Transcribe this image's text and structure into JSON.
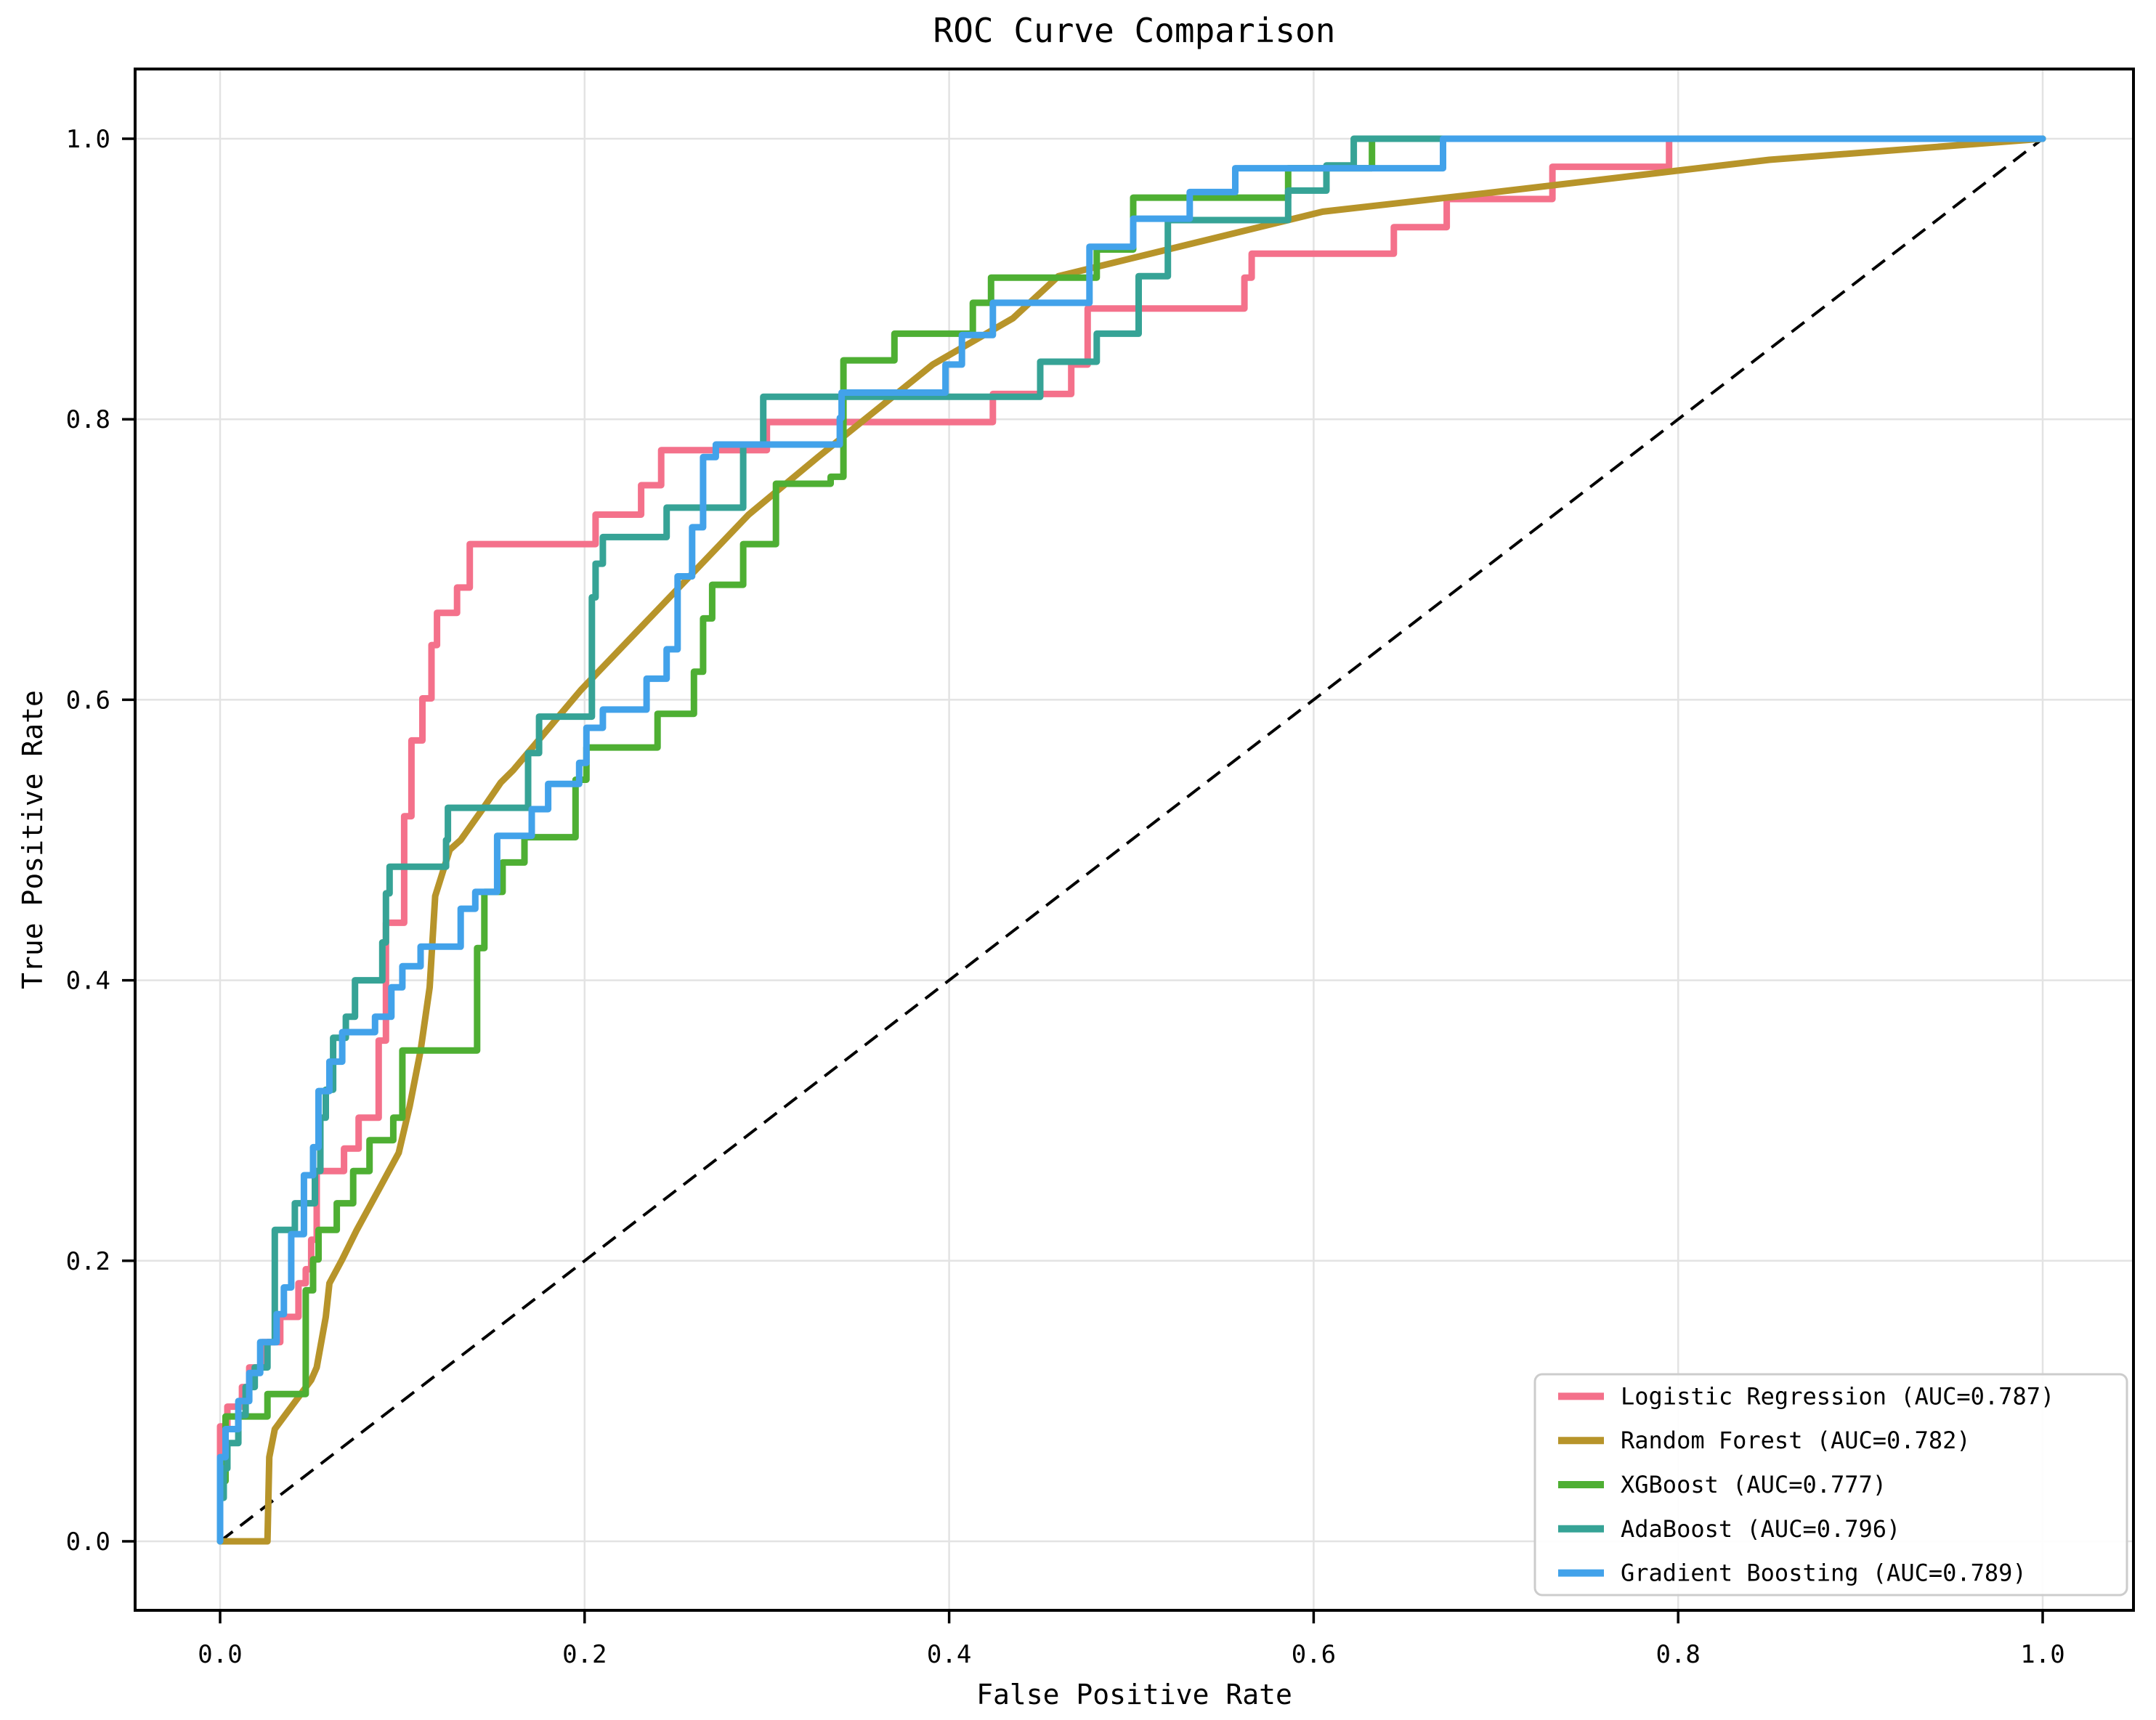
{
  "title": "ROC Curve Comparison",
  "chart_data": {
    "type": "line",
    "title": "ROC Curve Comparison",
    "xlabel": "False Positive Rate",
    "ylabel": "True Positive Rate",
    "xlim": [
      0.0,
      1.0
    ],
    "ylim": [
      0.0,
      1.0
    ],
    "grid": true,
    "grid_color": "#e3e3e3",
    "background": "#ffffff",
    "legend_position": "lower right",
    "xticks": [
      "0.0",
      "0.2",
      "0.4",
      "0.6",
      "0.8",
      "1.0"
    ],
    "yticks": [
      "0.0",
      "0.2",
      "0.4",
      "0.6",
      "0.8",
      "1.0"
    ],
    "xtick_values": [
      0.0,
      0.2,
      0.4,
      0.6,
      0.8,
      1.0
    ],
    "ytick_values": [
      0.0,
      0.2,
      0.4,
      0.6,
      0.8,
      1.0
    ],
    "reference_line": {
      "name": "chance-diagonal",
      "style": "dashed",
      "color": "#000000",
      "points": [
        [
          0,
          0
        ],
        [
          1,
          1
        ]
      ]
    },
    "series": [
      {
        "name": "Logistic Regression",
        "auc": 0.787,
        "legend_label": "Logistic Regression (AUC=0.787)",
        "color": "#f4718b",
        "mode": "step",
        "points": [
          [
            0,
            0
          ],
          [
            0.004,
            0.082
          ],
          [
            0.012,
            0.096
          ],
          [
            0.016,
            0.11
          ],
          [
            0.023,
            0.124
          ],
          [
            0.033,
            0.142
          ],
          [
            0.043,
            0.16
          ],
          [
            0.047,
            0.184
          ],
          [
            0.05,
            0.194
          ],
          [
            0.053,
            0.215
          ],
          [
            0.068,
            0.264
          ],
          [
            0.076,
            0.28
          ],
          [
            0.087,
            0.302
          ],
          [
            0.091,
            0.357
          ],
          [
            0.101,
            0.441
          ],
          [
            0.105,
            0.517
          ],
          [
            0.111,
            0.571
          ],
          [
            0.116,
            0.601
          ],
          [
            0.119,
            0.639
          ],
          [
            0.13,
            0.662
          ],
          [
            0.137,
            0.68
          ],
          [
            0.206,
            0.711
          ],
          [
            0.231,
            0.732
          ],
          [
            0.242,
            0.753
          ],
          [
            0.3,
            0.778
          ],
          [
            0.424,
            0.798
          ],
          [
            0.467,
            0.818
          ],
          [
            0.476,
            0.839
          ],
          [
            0.562,
            0.879
          ],
          [
            0.566,
            0.901
          ],
          [
            0.644,
            0.918
          ],
          [
            0.673,
            0.937
          ],
          [
            0.731,
            0.957
          ],
          [
            0.795,
            0.98
          ],
          [
            0.856,
            1
          ],
          [
            1,
            1
          ]
        ]
      },
      {
        "name": "Random Forest",
        "auc": 0.782,
        "legend_label": "Random Forest (AUC=0.782)",
        "color": "#b7942a",
        "mode": "line",
        "points": [
          [
            0,
            0
          ],
          [
            0.026,
            0
          ],
          [
            0.027,
            0.06
          ],
          [
            0.03,
            0.08
          ],
          [
            0.05,
            0.115
          ],
          [
            0.053,
            0.124
          ],
          [
            0.058,
            0.16
          ],
          [
            0.06,
            0.184
          ],
          [
            0.067,
            0.201
          ],
          [
            0.075,
            0.222
          ],
          [
            0.083,
            0.241
          ],
          [
            0.088,
            0.253
          ],
          [
            0.098,
            0.277
          ],
          [
            0.104,
            0.31
          ],
          [
            0.11,
            0.35
          ],
          [
            0.115,
            0.395
          ],
          [
            0.118,
            0.46
          ],
          [
            0.126,
            0.493
          ],
          [
            0.132,
            0.5
          ],
          [
            0.144,
            0.522
          ],
          [
            0.154,
            0.541
          ],
          [
            0.161,
            0.55
          ],
          [
            0.198,
            0.607
          ],
          [
            0.29,
            0.732
          ],
          [
            0.328,
            0.773
          ],
          [
            0.391,
            0.839
          ],
          [
            0.435,
            0.872
          ],
          [
            0.46,
            0.902
          ],
          [
            0.605,
            0.948
          ],
          [
            0.7,
            0.962
          ],
          [
            0.85,
            0.985
          ],
          [
            1,
            1
          ]
        ]
      },
      {
        "name": "XGBoost",
        "auc": 0.777,
        "legend_label": "XGBoost (AUC=0.777)",
        "color": "#4eaf33",
        "mode": "step",
        "points": [
          [
            0,
            0
          ],
          [
            0.003,
            0.043
          ],
          [
            0.026,
            0.089
          ],
          [
            0.047,
            0.105
          ],
          [
            0.047,
            0.16
          ],
          [
            0.051,
            0.179
          ],
          [
            0.054,
            0.201
          ],
          [
            0.064,
            0.222
          ],
          [
            0.073,
            0.241
          ],
          [
            0.082,
            0.264
          ],
          [
            0.095,
            0.286
          ],
          [
            0.1,
            0.302
          ],
          [
            0.141,
            0.35
          ],
          [
            0.145,
            0.423
          ],
          [
            0.155,
            0.463
          ],
          [
            0.167,
            0.484
          ],
          [
            0.195,
            0.502
          ],
          [
            0.201,
            0.543
          ],
          [
            0.24,
            0.566
          ],
          [
            0.26,
            0.59
          ],
          [
            0.265,
            0.62
          ],
          [
            0.27,
            0.658
          ],
          [
            0.287,
            0.682
          ],
          [
            0.305,
            0.711
          ],
          [
            0.335,
            0.754
          ],
          [
            0.342,
            0.759
          ],
          [
            0.342,
            0.82
          ],
          [
            0.37,
            0.842
          ],
          [
            0.413,
            0.861
          ],
          [
            0.423,
            0.883
          ],
          [
            0.481,
            0.901
          ],
          [
            0.501,
            0.921
          ],
          [
            0.586,
            0.958
          ],
          [
            0.632,
            0.979
          ],
          [
            0.878,
            1
          ],
          [
            1,
            1
          ]
        ]
      },
      {
        "name": "AdaBoost",
        "auc": 0.796,
        "legend_label": "AdaBoost (AUC=0.796)",
        "color": "#36a396",
        "mode": "step",
        "points": [
          [
            0,
            0
          ],
          [
            0.002,
            0.031
          ],
          [
            0.004,
            0.052
          ],
          [
            0.01,
            0.07
          ],
          [
            0.014,
            0.09
          ],
          [
            0.019,
            0.11
          ],
          [
            0.026,
            0.124
          ],
          [
            0.03,
            0.142
          ],
          [
            0.041,
            0.222
          ],
          [
            0.052,
            0.241
          ],
          [
            0.055,
            0.264
          ],
          [
            0.058,
            0.302
          ],
          [
            0.062,
            0.322
          ],
          [
            0.069,
            0.359
          ],
          [
            0.074,
            0.374
          ],
          [
            0.089,
            0.4
          ],
          [
            0.091,
            0.427
          ],
          [
            0.093,
            0.462
          ],
          [
            0.124,
            0.481
          ],
          [
            0.125,
            0.5
          ],
          [
            0.169,
            0.523
          ],
          [
            0.175,
            0.562
          ],
          [
            0.204,
            0.588
          ],
          [
            0.206,
            0.673
          ],
          [
            0.21,
            0.697
          ],
          [
            0.245,
            0.716
          ],
          [
            0.287,
            0.737
          ],
          [
            0.298,
            0.782
          ],
          [
            0.45,
            0.816
          ],
          [
            0.481,
            0.841
          ],
          [
            0.504,
            0.861
          ],
          [
            0.52,
            0.902
          ],
          [
            0.586,
            0.942
          ],
          [
            0.607,
            0.963
          ],
          [
            0.622,
            0.981
          ],
          [
            0.694,
            1
          ],
          [
            1,
            1
          ]
        ]
      },
      {
        "name": "Gradient Boosting",
        "auc": 0.789,
        "legend_label": "Gradient Boosting (AUC=0.789)",
        "color": "#42a2ea",
        "mode": "step",
        "points": [
          [
            0,
            0
          ],
          [
            0.003,
            0.06
          ],
          [
            0.01,
            0.08
          ],
          [
            0.016,
            0.1
          ],
          [
            0.022,
            0.12
          ],
          [
            0.031,
            0.142
          ],
          [
            0.035,
            0.162
          ],
          [
            0.039,
            0.181
          ],
          [
            0.046,
            0.219
          ],
          [
            0.051,
            0.261
          ],
          [
            0.054,
            0.281
          ],
          [
            0.06,
            0.321
          ],
          [
            0.067,
            0.342
          ],
          [
            0.085,
            0.363
          ],
          [
            0.094,
            0.374
          ],
          [
            0.1,
            0.395
          ],
          [
            0.11,
            0.41
          ],
          [
            0.132,
            0.424
          ],
          [
            0.14,
            0.451
          ],
          [
            0.152,
            0.463
          ],
          [
            0.171,
            0.503
          ],
          [
            0.18,
            0.522
          ],
          [
            0.197,
            0.54
          ],
          [
            0.201,
            0.555
          ],
          [
            0.21,
            0.58
          ],
          [
            0.234,
            0.593
          ],
          [
            0.245,
            0.615
          ],
          [
            0.251,
            0.636
          ],
          [
            0.259,
            0.688
          ],
          [
            0.265,
            0.723
          ],
          [
            0.272,
            0.773
          ],
          [
            0.34,
            0.782
          ],
          [
            0.341,
            0.801
          ],
          [
            0.398,
            0.819
          ],
          [
            0.407,
            0.839
          ],
          [
            0.424,
            0.86
          ],
          [
            0.477,
            0.883
          ],
          [
            0.501,
            0.923
          ],
          [
            0.532,
            0.943
          ],
          [
            0.557,
            0.962
          ],
          [
            0.671,
            0.979
          ],
          [
            0.743,
            1
          ],
          [
            1,
            1
          ]
        ]
      }
    ]
  }
}
